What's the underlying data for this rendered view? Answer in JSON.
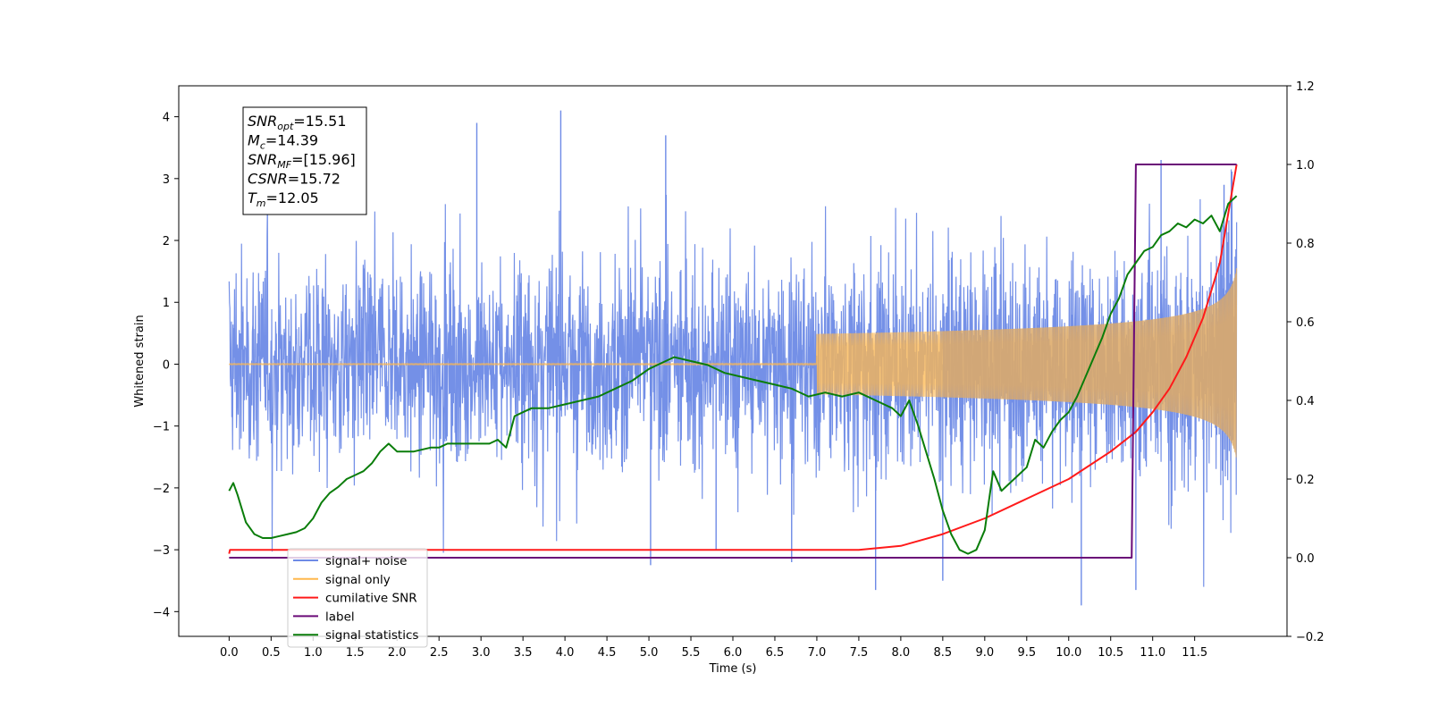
{
  "chart_data": {
    "type": "line",
    "xlabel": "Time (s)",
    "ylabel": "Whitened strain",
    "xlim": [
      -0.6,
      12.6
    ],
    "ylim": [
      -4.4,
      4.5
    ],
    "y2lim": [
      -0.2,
      1.2
    ],
    "x_ticks": [
      "0.0",
      "0.5",
      "1.0",
      "1.5",
      "2.0",
      "2.5",
      "3.0",
      "3.5",
      "4.0",
      "4.5",
      "5.0",
      "5.5",
      "6.0",
      "6.5",
      "7.0",
      "7.5",
      "8.0",
      "8.5",
      "9.0",
      "9.5",
      "10.0",
      "10.5",
      "11.0",
      "11.5"
    ],
    "y_ticks": [
      "4",
      "3",
      "2",
      "1",
      "0",
      "−1",
      "−2",
      "−3",
      "−4"
    ],
    "y2_ticks": [
      "1.2",
      "1.0",
      "0.8",
      "0.6",
      "0.4",
      "0.2",
      "0.0",
      "−0.2"
    ],
    "grid": false,
    "legend_position": "lower-left",
    "info_box": [
      {
        "main": "SNR",
        "sub": "opt",
        "value": "=15.51"
      },
      {
        "main": "M",
        "sub": "c",
        "value": "=14.39"
      },
      {
        "main": "SNR",
        "sub": "MF",
        "value": "=[15.96]"
      },
      {
        "main": "CSNR",
        "sub": "",
        "value": "=15.72"
      },
      {
        "main": "T",
        "sub": "m",
        "value": "=12.05"
      }
    ],
    "series": [
      {
        "name": "signal+ noise",
        "color": "#6d8ae6",
        "axis": "left",
        "kind": "noise",
        "x_range": [
          0.0,
          12.0
        ],
        "envelope_typical": [
          -1.6,
          1.6
        ],
        "envelope_extremes": [
          -3.9,
          4.1
        ],
        "notable_peaks": [
          {
            "x": 3.95,
            "y": 4.1
          },
          {
            "x": 2.95,
            "y": 3.9
          },
          {
            "x": 5.2,
            "y": 3.7
          },
          {
            "x": 11.1,
            "y": 3.3
          },
          {
            "x": 11.85,
            "y": 2.9
          },
          {
            "x": 10.15,
            "y": -3.9
          },
          {
            "x": 7.7,
            "y": -3.65
          },
          {
            "x": 10.8,
            "y": -3.65
          },
          {
            "x": 8.5,
            "y": -3.5
          },
          {
            "x": 6.7,
            "y": -3.2
          },
          {
            "x": 5.02,
            "y": -3.25
          },
          {
            "x": 5.8,
            "y": -3.0
          }
        ]
      },
      {
        "name": "signal only",
        "color": "#ffb84d",
        "axis": "left",
        "kind": "chirp",
        "x_range": [
          0.0,
          12.0
        ],
        "amplitude_end": 1.55
      },
      {
        "name": "cumilative SNR",
        "color": "#ff1a1a",
        "axis": "right",
        "x": [
          0.0,
          0.01,
          7.5,
          8.0,
          8.5,
          9.0,
          9.5,
          10.0,
          10.5,
          10.8,
          11.0,
          11.2,
          11.4,
          11.6,
          11.8,
          12.0
        ],
        "values": [
          0.01,
          0.02,
          0.02,
          0.03,
          0.06,
          0.1,
          0.15,
          0.2,
          0.27,
          0.32,
          0.37,
          0.43,
          0.51,
          0.61,
          0.75,
          1.0
        ]
      },
      {
        "name": "label",
        "color": "#6a0a78",
        "axis": "right",
        "x": [
          0.0,
          10.75,
          10.8,
          12.0
        ],
        "values": [
          0.0,
          0.0,
          1.0,
          1.0
        ]
      },
      {
        "name": "signal statistics",
        "color": "#0a7d0a",
        "axis": "right",
        "x": [
          0.0,
          0.05,
          0.1,
          0.2,
          0.3,
          0.4,
          0.5,
          0.6,
          0.7,
          0.8,
          0.9,
          1.0,
          1.1,
          1.2,
          1.3,
          1.4,
          1.5,
          1.6,
          1.7,
          1.8,
          1.9,
          2.0,
          2.2,
          2.4,
          2.5,
          2.6,
          2.8,
          3.0,
          3.1,
          3.2,
          3.3,
          3.4,
          3.5,
          3.6,
          3.8,
          4.0,
          4.2,
          4.4,
          4.6,
          4.8,
          5.0,
          5.1,
          5.2,
          5.3,
          5.5,
          5.7,
          5.9,
          6.1,
          6.3,
          6.5,
          6.7,
          6.9,
          7.1,
          7.3,
          7.5,
          7.7,
          7.9,
          8.0,
          8.1,
          8.2,
          8.3,
          8.4,
          8.5,
          8.6,
          8.7,
          8.8,
          8.9,
          9.0,
          9.1,
          9.2,
          9.3,
          9.4,
          9.5,
          9.6,
          9.7,
          9.8,
          9.9,
          10.0,
          10.1,
          10.2,
          10.3,
          10.4,
          10.5,
          10.6,
          10.7,
          10.8,
          10.9,
          11.0,
          11.1,
          11.2,
          11.3,
          11.4,
          11.5,
          11.6,
          11.7,
          11.8,
          11.9,
          12.0
        ],
        "values": [
          0.17,
          0.19,
          0.16,
          0.09,
          0.06,
          0.05,
          0.05,
          0.055,
          0.06,
          0.065,
          0.075,
          0.1,
          0.14,
          0.165,
          0.18,
          0.2,
          0.21,
          0.22,
          0.24,
          0.27,
          0.29,
          0.27,
          0.27,
          0.28,
          0.28,
          0.29,
          0.29,
          0.29,
          0.29,
          0.3,
          0.28,
          0.36,
          0.37,
          0.38,
          0.38,
          0.39,
          0.4,
          0.41,
          0.43,
          0.45,
          0.48,
          0.49,
          0.5,
          0.51,
          0.5,
          0.49,
          0.47,
          0.46,
          0.45,
          0.44,
          0.43,
          0.41,
          0.42,
          0.41,
          0.42,
          0.4,
          0.38,
          0.36,
          0.4,
          0.34,
          0.27,
          0.2,
          0.12,
          0.06,
          0.02,
          0.01,
          0.02,
          0.07,
          0.22,
          0.17,
          0.19,
          0.21,
          0.23,
          0.3,
          0.28,
          0.32,
          0.35,
          0.37,
          0.41,
          0.46,
          0.51,
          0.56,
          0.62,
          0.66,
          0.72,
          0.75,
          0.78,
          0.79,
          0.82,
          0.83,
          0.85,
          0.84,
          0.86,
          0.85,
          0.87,
          0.83,
          0.9,
          0.92
        ]
      }
    ]
  }
}
